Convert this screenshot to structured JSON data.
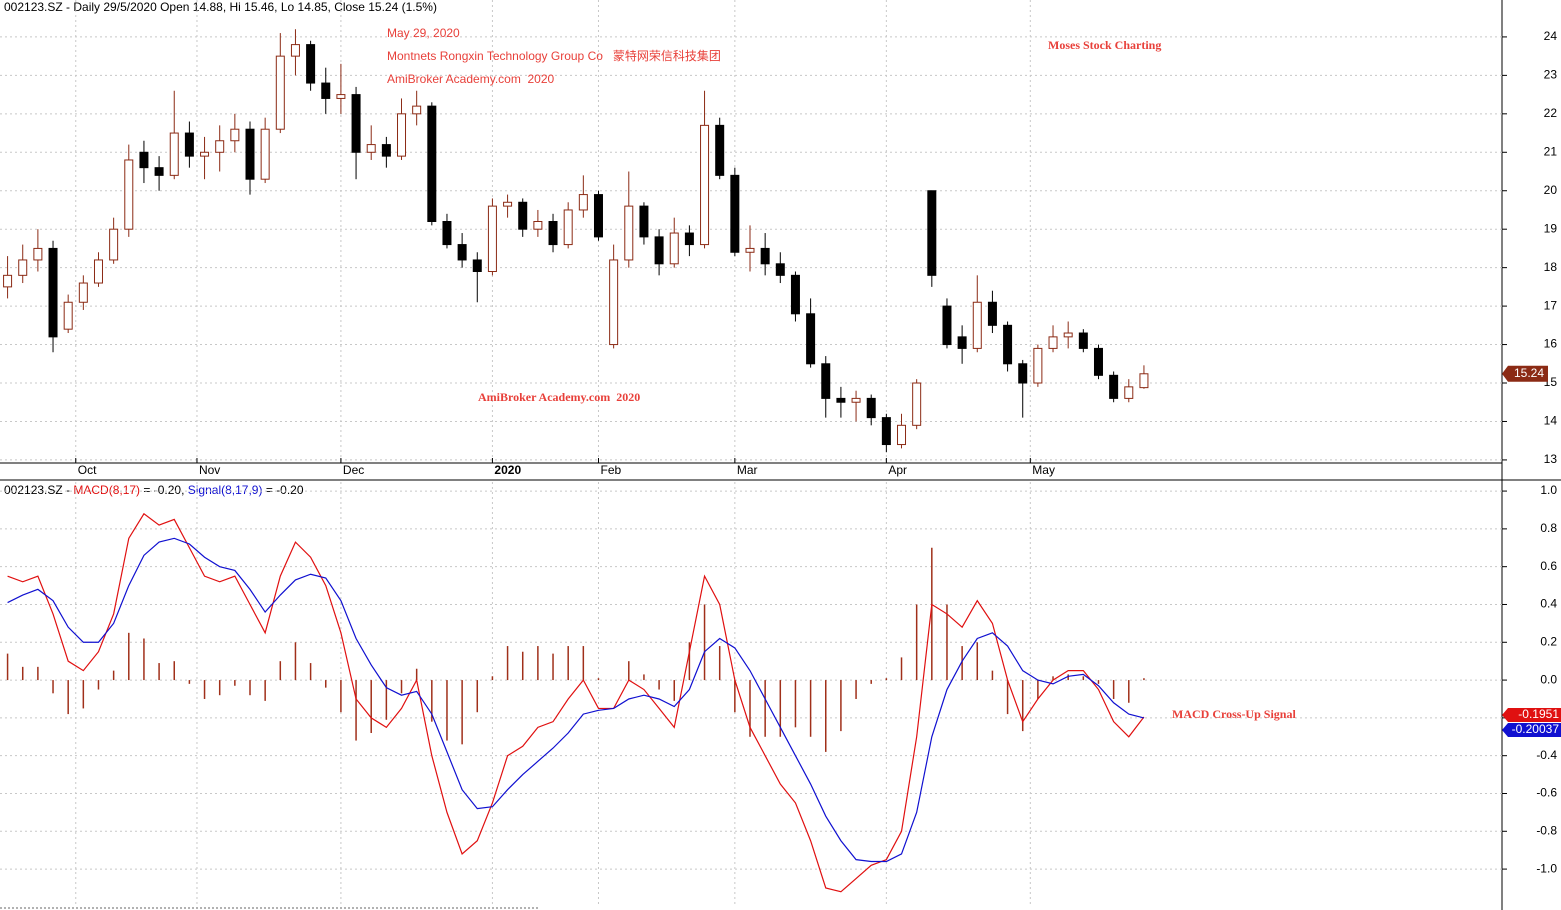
{
  "chart_data": [
    {
      "type": "candlestick",
      "title": "002123.SZ - Daily 29/5/2020 Open 14.88, Hi 15.46, Lo 14.85, Close 15.24 (1.5%)",
      "annotations": [
        "May 29, 2020",
        "Montnets Rongxin Technology Group Co   蒙特网荣信科技集团",
        "AmiBroker Academy.com  2020",
        "Moses Stock Charting",
        "AmiBroker Academy.com  2020"
      ],
      "up_color": "#8b2a14",
      "down_color": "#000000",
      "x": [
        0,
        2,
        4,
        6,
        8,
        10,
        12,
        14,
        16,
        18,
        20,
        22,
        24,
        26,
        28,
        30,
        32,
        34,
        36,
        38,
        40,
        42,
        44,
        46,
        48,
        50,
        52,
        54,
        56,
        58,
        60,
        62,
        64,
        66,
        68,
        70,
        72,
        74,
        76,
        78,
        80,
        82,
        84,
        86,
        88,
        90,
        92,
        94,
        96,
        98,
        100,
        102,
        104,
        106,
        108,
        110,
        112,
        114,
        116,
        118,
        120,
        122,
        124,
        126,
        128,
        130,
        132,
        134,
        136,
        138,
        140,
        142,
        144,
        146,
        148,
        150
      ],
      "open": [
        17.5,
        17.8,
        18.2,
        18.5,
        16.4,
        17.1,
        17.6,
        18.2,
        19.0,
        21.0,
        20.6,
        20.4,
        21.5,
        20.9,
        21.0,
        21.3,
        21.6,
        20.3,
        21.6,
        23.5,
        23.8,
        22.8,
        22.4,
        22.5,
        21.0,
        21.2,
        20.9,
        22.0,
        22.2,
        19.2,
        18.6,
        18.2,
        17.9,
        19.6,
        19.7,
        19.0,
        19.2,
        18.6,
        19.5,
        19.9,
        16.0,
        18.2,
        19.6,
        18.8,
        18.1,
        18.9,
        18.6,
        21.7,
        20.4,
        18.4,
        18.5,
        18.1,
        17.8,
        16.8,
        15.5,
        14.6,
        14.5,
        14.6,
        14.1,
        13.4,
        13.9,
        20.0,
        17.0,
        16.2,
        15.9,
        17.1,
        16.5,
        15.5,
        15.0,
        15.9,
        16.2,
        16.3,
        15.9,
        15.2,
        14.6,
        14.88
      ],
      "high": [
        18.3,
        18.6,
        19.0,
        18.7,
        17.3,
        17.8,
        18.4,
        19.3,
        21.2,
        21.3,
        20.9,
        22.6,
        21.8,
        21.4,
        21.7,
        22.0,
        21.8,
        21.9,
        24.1,
        24.2,
        23.9,
        23.2,
        23.3,
        22.7,
        21.7,
        21.4,
        22.4,
        22.6,
        22.3,
        19.4,
        18.9,
        18.4,
        19.8,
        19.9,
        19.8,
        19.5,
        19.4,
        19.7,
        20.4,
        20.0,
        18.6,
        20.5,
        19.7,
        19.0,
        19.3,
        19.1,
        22.6,
        21.9,
        20.6,
        19.1,
        18.9,
        18.4,
        17.9,
        17.2,
        15.7,
        14.9,
        14.8,
        14.7,
        14.2,
        14.2,
        15.1,
        20.0,
        17.2,
        16.5,
        17.8,
        17.4,
        16.6,
        15.6,
        16.0,
        16.5,
        16.6,
        16.4,
        16.0,
        15.3,
        15.1,
        15.46
      ],
      "low": [
        17.2,
        17.6,
        17.9,
        15.8,
        16.3,
        16.9,
        17.5,
        18.1,
        18.8,
        20.2,
        20.0,
        20.3,
        20.6,
        20.3,
        20.5,
        21.0,
        19.9,
        20.2,
        21.5,
        23.0,
        22.6,
        22.0,
        22.0,
        20.3,
        20.8,
        20.6,
        20.8,
        21.7,
        19.1,
        18.5,
        18.0,
        17.1,
        17.8,
        19.3,
        18.8,
        18.8,
        18.4,
        18.5,
        19.3,
        18.7,
        15.9,
        18.0,
        18.6,
        17.8,
        18.0,
        18.3,
        18.5,
        20.3,
        18.3,
        17.9,
        17.8,
        17.6,
        16.6,
        15.4,
        14.1,
        14.1,
        14.0,
        13.9,
        13.2,
        13.3,
        13.8,
        17.5,
        15.9,
        15.5,
        15.8,
        16.3,
        15.3,
        14.1,
        14.9,
        15.8,
        15.9,
        15.8,
        15.1,
        14.5,
        14.5,
        14.85
      ],
      "close": [
        17.8,
        18.2,
        18.5,
        16.2,
        17.1,
        17.6,
        18.2,
        19.0,
        20.8,
        20.6,
        20.4,
        21.5,
        20.9,
        21.0,
        21.3,
        21.6,
        20.3,
        21.6,
        23.5,
        23.8,
        22.8,
        22.4,
        22.5,
        21.0,
        21.2,
        20.9,
        22.0,
        22.2,
        19.2,
        18.6,
        18.2,
        17.9,
        19.6,
        19.7,
        19.0,
        19.2,
        18.6,
        19.5,
        19.9,
        18.8,
        18.2,
        19.6,
        18.8,
        18.1,
        18.9,
        18.6,
        21.7,
        20.4,
        18.4,
        18.5,
        18.1,
        17.8,
        16.8,
        15.5,
        14.6,
        14.5,
        14.6,
        14.1,
        13.4,
        13.9,
        15.0,
        17.8,
        16.0,
        15.9,
        17.1,
        16.5,
        15.5,
        15.0,
        15.9,
        16.2,
        16.3,
        15.9,
        15.2,
        14.6,
        14.9,
        15.24
      ],
      "xlim": [
        -1,
        197
      ],
      "xticks": [
        {
          "value": 9,
          "label": "Oct"
        },
        {
          "value": 25,
          "label": "Nov"
        },
        {
          "value": 44,
          "label": "Dec"
        },
        {
          "value": 64,
          "label": "2020",
          "bold": true
        },
        {
          "value": 78,
          "label": "Feb"
        },
        {
          "value": 96,
          "label": "Mar"
        },
        {
          "value": 116,
          "label": "Apr"
        },
        {
          "value": 135,
          "label": "May"
        }
      ],
      "ylim": [
        12.92,
        24.96
      ],
      "yticks": [
        13,
        14,
        15,
        16,
        17,
        18,
        19,
        20,
        21,
        22,
        23,
        24
      ],
      "grid": true
    },
    {
      "type": "macd",
      "title_parts": [
        "002123.SZ - ",
        " = -0.20, ",
        " = -0.20"
      ],
      "annotations": [
        "MACD Cross-Up Signal"
      ],
      "x": [
        0,
        2,
        4,
        6,
        8,
        10,
        12,
        14,
        16,
        18,
        20,
        22,
        24,
        26,
        28,
        30,
        32,
        34,
        36,
        38,
        40,
        42,
        44,
        46,
        48,
        50,
        52,
        54,
        56,
        58,
        60,
        62,
        64,
        66,
        68,
        70,
        72,
        74,
        76,
        78,
        80,
        82,
        84,
        86,
        88,
        90,
        92,
        94,
        96,
        98,
        100,
        102,
        104,
        106,
        108,
        110,
        112,
        114,
        116,
        118,
        120,
        122,
        124,
        126,
        128,
        130,
        132,
        134,
        136,
        138,
        140,
        142,
        144,
        146,
        148,
        150
      ],
      "series": [
        {
          "name": "MACD(8,17)",
          "color": "#e01010",
          "values": [
            0.55,
            0.52,
            0.55,
            0.35,
            0.1,
            0.05,
            0.15,
            0.35,
            0.75,
            0.88,
            0.82,
            0.85,
            0.7,
            0.55,
            0.52,
            0.55,
            0.4,
            0.25,
            0.55,
            0.73,
            0.65,
            0.5,
            0.25,
            -0.1,
            -0.2,
            -0.25,
            -0.15,
            0.0,
            -0.4,
            -0.7,
            -0.92,
            -0.85,
            -0.65,
            -0.4,
            -0.35,
            -0.25,
            -0.22,
            -0.1,
            0.0,
            -0.15,
            -0.15,
            0.0,
            -0.05,
            -0.15,
            -0.25,
            0.15,
            0.55,
            0.4,
            0.0,
            -0.25,
            -0.4,
            -0.55,
            -0.65,
            -0.85,
            -1.1,
            -1.12,
            -1.05,
            -0.98,
            -0.95,
            -0.8,
            -0.3,
            0.4,
            0.35,
            0.28,
            0.42,
            0.3,
            0.0,
            -0.22,
            -0.1,
            0.0,
            0.05,
            0.05,
            -0.05,
            -0.22,
            -0.3,
            -0.1951
          ]
        },
        {
          "name": "Signal(8,17,9)",
          "color": "#1010d0",
          "values": [
            0.41,
            0.45,
            0.48,
            0.42,
            0.28,
            0.2,
            0.2,
            0.3,
            0.5,
            0.66,
            0.73,
            0.75,
            0.72,
            0.65,
            0.6,
            0.58,
            0.48,
            0.36,
            0.45,
            0.53,
            0.56,
            0.54,
            0.42,
            0.22,
            0.08,
            -0.04,
            -0.08,
            -0.06,
            -0.18,
            -0.38,
            -0.58,
            -0.68,
            -0.67,
            -0.58,
            -0.5,
            -0.43,
            -0.36,
            -0.28,
            -0.18,
            -0.16,
            -0.15,
            -0.1,
            -0.08,
            -0.1,
            -0.14,
            -0.05,
            0.15,
            0.22,
            0.17,
            0.05,
            -0.1,
            -0.25,
            -0.4,
            -0.55,
            -0.72,
            -0.85,
            -0.95,
            -0.96,
            -0.96,
            -0.92,
            -0.7,
            -0.3,
            -0.05,
            0.1,
            0.22,
            0.25,
            0.18,
            0.05,
            0.0,
            -0.02,
            0.02,
            0.03,
            -0.03,
            -0.12,
            -0.18,
            -0.20037
          ]
        }
      ],
      "histogram": {
        "color": "#a0301a",
        "values": [
          0.14,
          0.07,
          0.07,
          -0.07,
          -0.18,
          -0.15,
          -0.05,
          0.05,
          0.25,
          0.22,
          0.09,
          0.1,
          -0.02,
          -0.1,
          -0.08,
          -0.03,
          -0.08,
          -0.11,
          0.1,
          0.2,
          0.09,
          -0.04,
          -0.17,
          -0.32,
          -0.28,
          -0.21,
          -0.07,
          0.06,
          -0.22,
          -0.32,
          -0.34,
          -0.17,
          0.02,
          0.18,
          0.15,
          0.18,
          0.14,
          0.18,
          0.18,
          0.01,
          0.0,
          0.1,
          0.03,
          -0.05,
          -0.11,
          0.2,
          0.4,
          0.18,
          -0.17,
          -0.3,
          -0.3,
          -0.3,
          -0.25,
          -0.3,
          -0.38,
          -0.27,
          -0.1,
          -0.02,
          0.01,
          0.12,
          0.4,
          0.7,
          0.4,
          0.18,
          0.2,
          0.05,
          -0.18,
          -0.27,
          -0.1,
          0.02,
          0.03,
          0.02,
          -0.02,
          -0.1,
          -0.12,
          0.01
        ]
      },
      "xlim": [
        -1,
        197
      ],
      "ylim": [
        -1.19,
        1.048
      ],
      "yticks": [
        {
          "value": 1.0,
          "label": "1.0"
        },
        0.8,
        0.6,
        0.4,
        0.2,
        {
          "value": 0.0,
          "label": "0.0"
        },
        -0.2,
        -0.4,
        -0.6,
        -0.8,
        {
          "value": -1.0,
          "label": "-1.0"
        }
      ],
      "grid": true
    }
  ]
}
